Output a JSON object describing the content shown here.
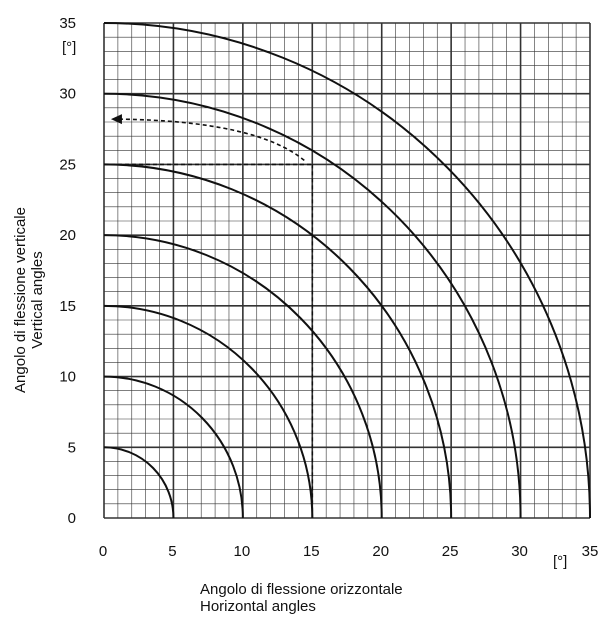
{
  "chart_data": {
    "type": "line",
    "title": "",
    "xlabel": [
      "Angolo di flessione orizzontale",
      "Horizontal angles"
    ],
    "ylabel": [
      "Angolo di flessione verticale",
      "Vertical angles"
    ],
    "x_unit": "[°]",
    "y_unit": "[°]",
    "xlim": [
      0,
      35
    ],
    "ylim": [
      0,
      35
    ],
    "xticks": [
      0,
      5,
      10,
      15,
      20,
      25,
      30,
      35
    ],
    "yticks": [
      0,
      5,
      10,
      15,
      20,
      25,
      30,
      35
    ],
    "grid": {
      "major_step": 5,
      "minor_step": 1
    },
    "series": [
      {
        "radius": 5
      },
      {
        "radius": 10
      },
      {
        "radius": 15
      },
      {
        "radius": 20
      },
      {
        "radius": 25
      },
      {
        "radius": 30
      },
      {
        "radius": 35
      }
    ],
    "example": {
      "horizontal": 15,
      "vertical": 25,
      "arrow_to": [
        0.5,
        28.2
      ]
    },
    "colors": {
      "line": "#111111",
      "grid": "#333333",
      "background": "#ffffff"
    }
  }
}
